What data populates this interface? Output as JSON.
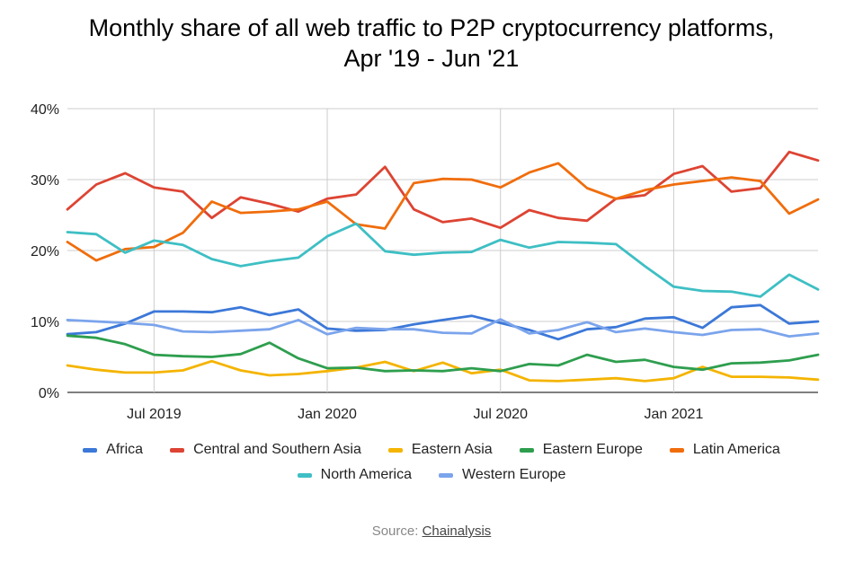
{
  "chart_data": {
    "type": "line",
    "title": "Monthly share of all web traffic to P2P cryptocurrency platforms,",
    "subtitle": "Apr '19 - Jun '21",
    "x": [
      "2019-04",
      "2019-05",
      "2019-06",
      "2019-07",
      "2019-08",
      "2019-09",
      "2019-10",
      "2019-11",
      "2019-12",
      "2020-01",
      "2020-02",
      "2020-03",
      "2020-04",
      "2020-05",
      "2020-06",
      "2020-07",
      "2020-08",
      "2020-09",
      "2020-10",
      "2020-11",
      "2020-12",
      "2021-01",
      "2021-02",
      "2021-03",
      "2021-04",
      "2021-05",
      "2021-06"
    ],
    "x_ticks": [
      "Jul 2019",
      "Jan 2020",
      "Jul 2020",
      "Jan 2021"
    ],
    "x_tick_index": [
      3,
      9,
      15,
      21
    ],
    "y_ticks": [
      "0%",
      "10%",
      "20%",
      "30%",
      "40%"
    ],
    "y_tick_values": [
      0,
      10,
      20,
      30,
      40
    ],
    "ylim": [
      0,
      40
    ],
    "grid": true,
    "legend_position": "bottom",
    "series": [
      {
        "name": "Africa",
        "color": "#3c78d8",
        "values": [
          8.2,
          8.5,
          9.7,
          11.4,
          11.4,
          11.3,
          12.0,
          10.9,
          11.7,
          9.0,
          8.7,
          8.8,
          9.6,
          10.2,
          10.8,
          9.8,
          8.8,
          7.5,
          8.9,
          9.2,
          10.4,
          10.6,
          9.1,
          12.0,
          12.3,
          9.7,
          10.0
        ]
      },
      {
        "name": "Central and Southern Asia",
        "color": "#dd4433",
        "values": [
          25.8,
          29.3,
          30.9,
          28.9,
          28.3,
          24.6,
          27.5,
          26.6,
          25.5,
          27.3,
          27.9,
          31.8,
          25.8,
          24.0,
          24.5,
          23.2,
          25.7,
          24.6,
          24.2,
          27.3,
          27.8,
          30.8,
          31.9,
          28.3,
          28.8,
          33.9,
          32.7
        ]
      },
      {
        "name": "Eastern Asia",
        "color": "#f4b400",
        "values": [
          3.8,
          3.2,
          2.8,
          2.8,
          3.1,
          4.4,
          3.1,
          2.4,
          2.6,
          3.0,
          3.5,
          4.3,
          3.0,
          4.2,
          2.7,
          3.2,
          1.7,
          1.6,
          1.8,
          2.0,
          1.6,
          2.0,
          3.6,
          2.2,
          2.2,
          2.1,
          1.8
        ]
      },
      {
        "name": "Eastern Europe",
        "color": "#2e9e4e",
        "values": [
          8.0,
          7.7,
          6.8,
          5.3,
          5.1,
          5.0,
          5.4,
          7.0,
          4.8,
          3.4,
          3.5,
          3.0,
          3.1,
          3.0,
          3.4,
          3.0,
          4.0,
          3.8,
          5.3,
          4.3,
          4.6,
          3.6,
          3.2,
          4.1,
          4.2,
          4.5,
          5.3
        ]
      },
      {
        "name": "Latin America",
        "color": "#f06d0c",
        "values": [
          21.2,
          18.6,
          20.2,
          20.5,
          22.5,
          26.9,
          25.3,
          25.5,
          25.8,
          26.9,
          23.7,
          23.1,
          29.5,
          30.1,
          30.0,
          28.9,
          31.0,
          32.3,
          28.8,
          27.3,
          28.5,
          29.3,
          29.8,
          30.3,
          29.8,
          25.2,
          27.2
        ]
      },
      {
        "name": "North America",
        "color": "#3ebfc4",
        "values": [
          22.6,
          22.3,
          19.7,
          21.4,
          20.8,
          18.8,
          17.8,
          18.5,
          19.0,
          22.0,
          23.8,
          19.9,
          19.4,
          19.7,
          19.8,
          21.5,
          20.4,
          21.2,
          21.1,
          20.9,
          17.8,
          14.9,
          14.3,
          14.2,
          13.5,
          16.6,
          14.5
        ]
      },
      {
        "name": "Western Europe",
        "color": "#7ba4ec",
        "values": [
          10.2,
          10.0,
          9.8,
          9.5,
          8.6,
          8.5,
          8.7,
          8.9,
          10.2,
          8.2,
          9.1,
          8.9,
          8.9,
          8.4,
          8.3,
          10.3,
          8.3,
          8.8,
          9.9,
          8.5,
          9.0,
          8.5,
          8.1,
          8.8,
          8.9,
          7.9,
          8.3
        ]
      }
    ]
  },
  "legend": {
    "row1": [
      "Africa",
      "Central and Southern Asia",
      "Eastern Asia",
      "Eastern Europe",
      "Latin America"
    ],
    "row2": [
      "North America",
      "Western Europe"
    ]
  },
  "source": {
    "label": "Source:",
    "link": "Chainalysis"
  }
}
